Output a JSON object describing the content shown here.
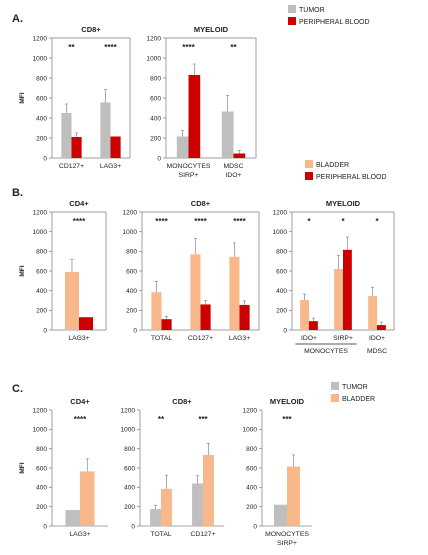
{
  "colors": {
    "tumor": "#bfbfbf",
    "peripheral_blood": "#cc0000",
    "bladder": "#f8b88b",
    "axis": "#888888",
    "text": "#222222"
  },
  "sections": {
    "a": "A.",
    "b": "B.",
    "c": "C."
  },
  "legends": {
    "a": [
      {
        "label": "TUMOR",
        "color_key": "tumor"
      },
      {
        "label": "PERIPHERAL BLOOD",
        "color_key": "peripheral_blood"
      }
    ],
    "b": [
      {
        "label": "BLADDER",
        "color_key": "bladder"
      },
      {
        "label": "PERIPHERAL BLOOD",
        "color_key": "peripheral_blood"
      }
    ],
    "c": [
      {
        "label": "TUMOR",
        "color_key": "tumor"
      },
      {
        "label": "BLADDER",
        "color_key": "bladder"
      }
    ]
  },
  "chart_data": [
    {
      "id": "A-CD8",
      "type": "bar",
      "title": "CD8+",
      "ylabel": "MFI",
      "ylim": [
        0,
        1200
      ],
      "yticks": [
        0,
        200,
        400,
        600,
        800,
        1000,
        1200
      ],
      "categories": [
        [
          "CD127+"
        ],
        [
          "LAG3+"
        ]
      ],
      "series": [
        {
          "name": "TUMOR",
          "color_key": "tumor",
          "values": [
            450,
            555
          ],
          "errors": [
            90,
            130
          ]
        },
        {
          "name": "PERIPHERAL BLOOD",
          "color_key": "peripheral_blood",
          "values": [
            210,
            215
          ],
          "errors": [
            40,
            0
          ]
        }
      ],
      "significance": [
        "**",
        "****"
      ]
    },
    {
      "id": "A-MYELOID",
      "type": "bar",
      "title": "MYELOID",
      "ylabel": "",
      "ylim": [
        0,
        1200
      ],
      "yticks": [
        0,
        200,
        400,
        600,
        800,
        1000,
        1200
      ],
      "categories": [
        [
          "MONOCYTES",
          "SIRP+"
        ],
        [
          "MDSC",
          "IDO+"
        ]
      ],
      "series": [
        {
          "name": "TUMOR",
          "color_key": "tumor",
          "values": [
            215,
            465
          ],
          "errors": [
            60,
            160
          ]
        },
        {
          "name": "PERIPHERAL BLOOD",
          "color_key": "peripheral_blood",
          "values": [
            830,
            45
          ],
          "errors": [
            110,
            30
          ]
        }
      ],
      "significance": [
        "****",
        "**"
      ]
    },
    {
      "id": "B-CD4",
      "type": "bar",
      "title": "CD4+",
      "ylabel": "MFI",
      "ylim": [
        0,
        1200
      ],
      "yticks": [
        0,
        200,
        400,
        600,
        800,
        1000,
        1200
      ],
      "categories": [
        [
          "LAG3+"
        ]
      ],
      "series": [
        {
          "name": "BLADDER",
          "color_key": "bladder",
          "values": [
            590
          ],
          "errors": [
            130
          ]
        },
        {
          "name": "PERIPHERAL BLOOD",
          "color_key": "peripheral_blood",
          "values": [
            130
          ],
          "errors": [
            0
          ]
        }
      ],
      "significance": [
        "****"
      ]
    },
    {
      "id": "B-CD8",
      "type": "bar",
      "title": "CD8+",
      "ylabel": "",
      "ylim": [
        0,
        1200
      ],
      "yticks": [
        0,
        200,
        400,
        600,
        800,
        1000,
        1200
      ],
      "categories": [
        [
          "TOTAL"
        ],
        [
          "CD127+"
        ],
        [
          "LAG3+"
        ]
      ],
      "series": [
        {
          "name": "BLADDER",
          "color_key": "bladder",
          "values": [
            385,
            770,
            745
          ],
          "errors": [
            110,
            160,
            140
          ]
        },
        {
          "name": "PERIPHERAL BLOOD",
          "color_key": "peripheral_blood",
          "values": [
            110,
            260,
            255
          ],
          "errors": [
            30,
            40,
            40
          ]
        }
      ],
      "significance": [
        "****",
        "****",
        "****"
      ]
    },
    {
      "id": "B-MYELOID",
      "type": "bar",
      "title": "MYELOID",
      "ylabel": "",
      "ylim": [
        0,
        1200
      ],
      "yticks": [
        0,
        200,
        400,
        600,
        800,
        1000,
        1200
      ],
      "categories": [
        [
          "IDO+"
        ],
        [
          "SIRP+"
        ],
        [
          "IDO+"
        ]
      ],
      "group_labels": [
        {
          "label": "MONOCYTES",
          "from": 0,
          "to": 1
        },
        {
          "label": "MDSC",
          "from": 2,
          "to": 2
        }
      ],
      "series": [
        {
          "name": "BLADDER",
          "color_key": "bladder",
          "values": [
            305,
            620,
            345
          ],
          "errors": [
            60,
            140,
            90
          ]
        },
        {
          "name": "PERIPHERAL BLOOD",
          "color_key": "peripheral_blood",
          "values": [
            90,
            815,
            50
          ],
          "errors": [
            30,
            130,
            30
          ]
        }
      ],
      "significance": [
        "*",
        "*",
        "*"
      ]
    },
    {
      "id": "C-CD4",
      "type": "bar",
      "title": "CD4+",
      "ylabel": "MFI",
      "ylim": [
        0,
        1200
      ],
      "yticks": [
        0,
        200,
        400,
        600,
        800,
        1000,
        1200
      ],
      "categories": [
        [
          "LAG3+"
        ]
      ],
      "series": [
        {
          "name": "TUMOR",
          "color_key": "tumor",
          "values": [
            165
          ],
          "errors": [
            0
          ]
        },
        {
          "name": "BLADDER",
          "color_key": "bladder",
          "values": [
            565
          ],
          "errors": [
            130
          ]
        }
      ],
      "significance": [
        "****"
      ]
    },
    {
      "id": "C-CD8",
      "type": "bar",
      "title": "CD8+",
      "ylabel": "",
      "ylim": [
        0,
        1200
      ],
      "yticks": [
        0,
        200,
        400,
        600,
        800,
        1000,
        1200
      ],
      "categories": [
        [
          "TOTAL"
        ],
        [
          "CD127+"
        ]
      ],
      "series": [
        {
          "name": "TUMOR",
          "color_key": "tumor",
          "values": [
            175,
            440
          ],
          "errors": [
            40,
            80
          ]
        },
        {
          "name": "BLADDER",
          "color_key": "bladder",
          "values": [
            385,
            735
          ],
          "errors": [
            140,
            120
          ]
        }
      ],
      "significance": [
        "**",
        "***"
      ]
    },
    {
      "id": "C-MYELOID",
      "type": "bar",
      "title": "MYELOID",
      "ylabel": "",
      "ylim": [
        0,
        1200
      ],
      "yticks": [
        0,
        200,
        400,
        600,
        800,
        1000,
        1200
      ],
      "categories": [
        [
          "MONOCYTES",
          "SIRP+"
        ]
      ],
      "series": [
        {
          "name": "TUMOR",
          "color_key": "tumor",
          "values": [
            220
          ],
          "errors": [
            0
          ]
        },
        {
          "name": "BLADDER",
          "color_key": "bladder",
          "values": [
            615
          ],
          "errors": [
            120
          ]
        }
      ],
      "significance": [
        "***"
      ]
    }
  ]
}
